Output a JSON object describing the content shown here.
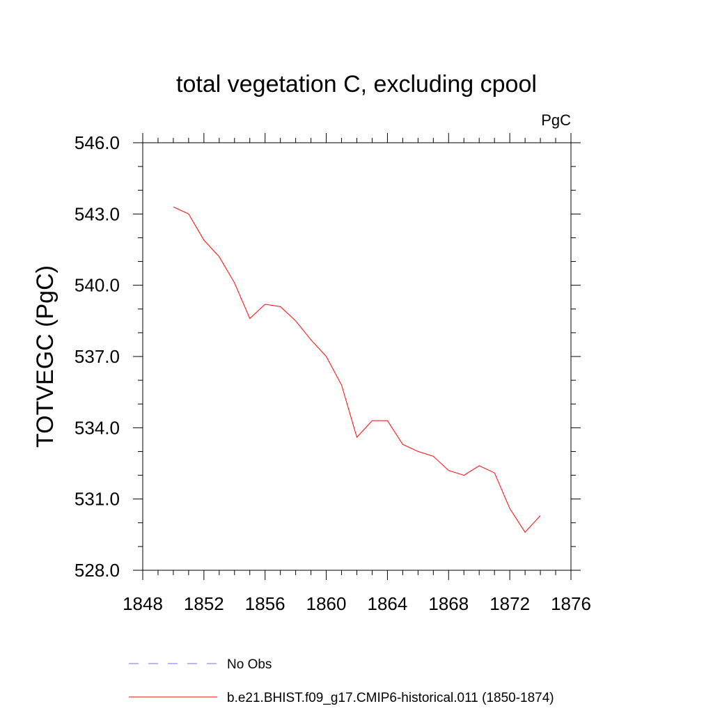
{
  "chart_data": {
    "type": "line",
    "title": "total vegetation C, excluding cpool",
    "units_label": "PgC",
    "ylabel": "TOTVEGC  (PgC)",
    "xlabel": "",
    "xlim": [
      1848,
      1876
    ],
    "ylim": [
      528.0,
      546.0
    ],
    "x_ticks": [
      "1848",
      "1852",
      "1856",
      "1860",
      "1864",
      "1868",
      "1872",
      "1876"
    ],
    "y_ticks": [
      "528.0",
      "531.0",
      "534.0",
      "537.0",
      "540.0",
      "543.0",
      "546.0"
    ],
    "series": [
      {
        "name": "b.e21.BHIST.f09_g17.CMIP6-historical.011 (1850-1874)",
        "color": "#ff0000",
        "x": [
          1850,
          1851,
          1852,
          1853,
          1854,
          1855,
          1856,
          1857,
          1858,
          1859,
          1860,
          1861,
          1862,
          1863,
          1864,
          1865,
          1866,
          1867,
          1868,
          1869,
          1870,
          1871,
          1872,
          1873,
          1874
        ],
        "y": [
          543.3,
          543.0,
          541.9,
          541.2,
          540.1,
          538.6,
          539.2,
          539.1,
          538.5,
          537.7,
          537.0,
          535.8,
          533.6,
          534.3,
          534.3,
          533.3,
          533.0,
          532.8,
          532.2,
          532.0,
          532.4,
          532.1,
          530.6,
          529.6,
          530.3
        ]
      }
    ],
    "legend": {
      "placement": "bottom",
      "entries": [
        {
          "label": "No Obs",
          "color": "#7b68ee",
          "style": "dashed"
        },
        {
          "label": "b.e21.BHIST.f09_g17.CMIP6-historical.011 (1850-1874)",
          "color": "#ff0000",
          "style": "solid"
        }
      ]
    }
  }
}
